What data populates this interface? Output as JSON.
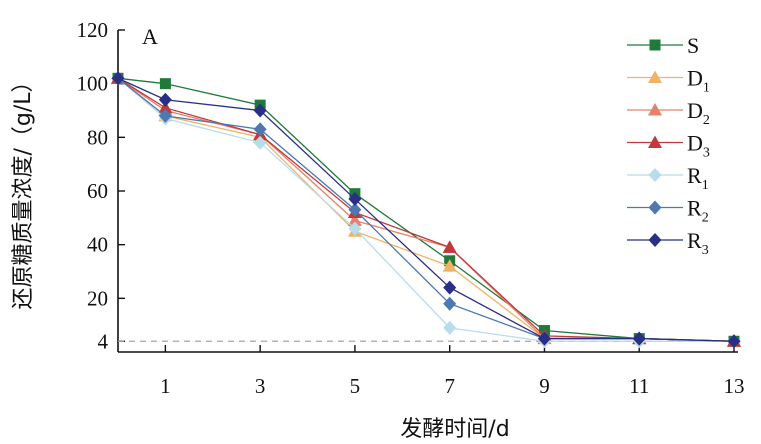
{
  "chart_data": {
    "type": "line",
    "panel_label": "A",
    "xlabel": "发酵时间/d",
    "ylabel": "还原糖质量浓度/（g/L）",
    "x": [
      0,
      1,
      3,
      5,
      7,
      9,
      11,
      13
    ],
    "x_ticks": [
      1,
      3,
      5,
      7,
      9,
      11,
      13
    ],
    "y_ticks": [
      4,
      20,
      40,
      60,
      80,
      100,
      120
    ],
    "ylim": [
      0,
      120
    ],
    "reference_line": {
      "y": 4,
      "style": "dashed"
    },
    "legend_position": "top-right",
    "grid": false,
    "series": [
      {
        "name": "S",
        "base": "S",
        "sub": "",
        "color": "#1f7a3a",
        "marker": "square",
        "values": [
          102,
          100,
          92,
          59,
          34,
          8,
          5,
          4
        ]
      },
      {
        "name": "D1",
        "base": "D",
        "sub": "1",
        "color": "#f2b266",
        "marker": "triangle",
        "values": [
          102,
          88,
          80,
          45,
          32,
          5,
          5,
          4
        ]
      },
      {
        "name": "D2",
        "base": "D",
        "sub": "2",
        "color": "#e8806a",
        "marker": "triangle",
        "values": [
          102,
          90,
          81,
          49,
          39,
          5,
          5,
          4
        ]
      },
      {
        "name": "D3",
        "base": "D",
        "sub": "3",
        "color": "#c0393b",
        "marker": "triangle",
        "values": [
          102,
          91,
          81,
          52,
          39,
          6,
          5,
          4
        ]
      },
      {
        "name": "R1",
        "base": "R",
        "sub": "1",
        "color": "#b7dcea",
        "marker": "diamond",
        "values": [
          102,
          87,
          78,
          46,
          9,
          4,
          4,
          4
        ]
      },
      {
        "name": "R2",
        "base": "R",
        "sub": "2",
        "color": "#4d78b0",
        "marker": "diamond",
        "values": [
          102,
          88,
          83,
          53,
          18,
          5,
          5,
          4
        ]
      },
      {
        "name": "R3",
        "base": "R",
        "sub": "3",
        "color": "#2a2f86",
        "marker": "diamond",
        "values": [
          102,
          94,
          90,
          57,
          24,
          5,
          5,
          4
        ]
      }
    ]
  }
}
